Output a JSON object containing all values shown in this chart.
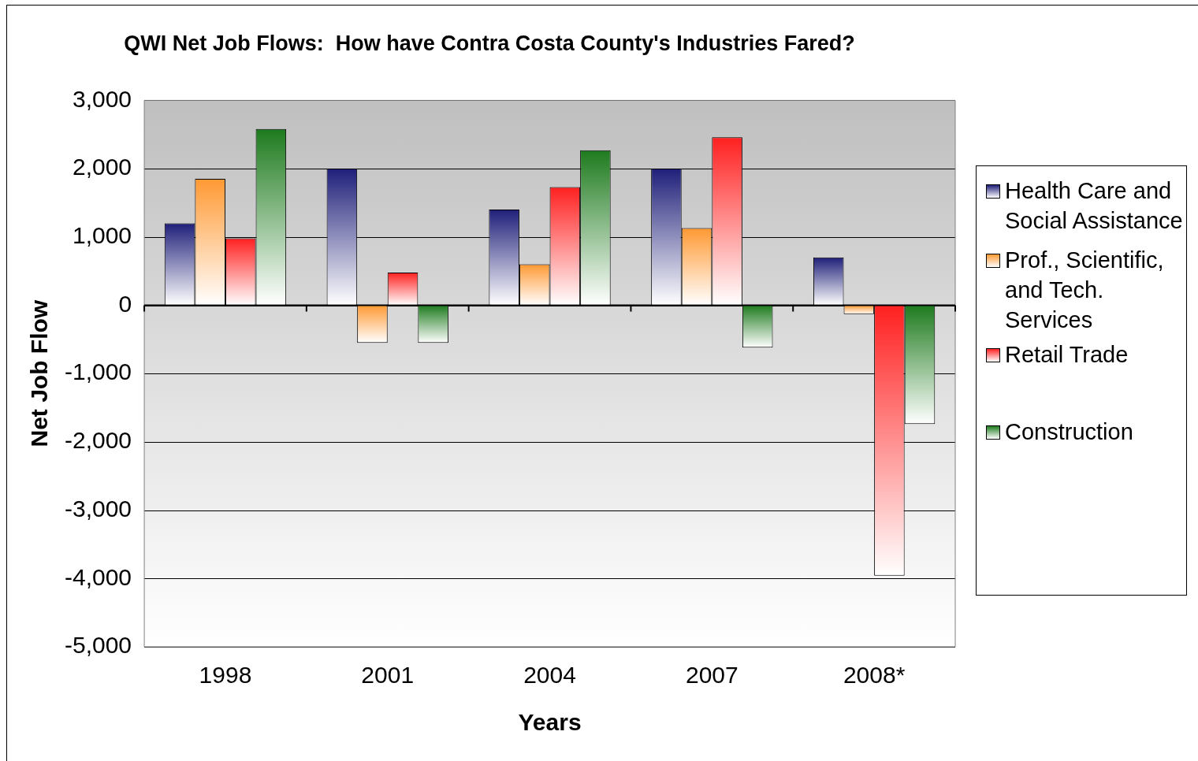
{
  "chart_data": {
    "type": "bar",
    "title": "QWI Net Job Flows:  How have Contra Costa County's Industries Fared?",
    "xlabel": "Years",
    "ylabel": "Net Job Flow",
    "categories": [
      "1998",
      "2001",
      "2004",
      "2007",
      "2008*"
    ],
    "series": [
      {
        "name": "Health Care and Social Assistance",
        "color": "#1f1f7a",
        "values": [
          1200,
          2000,
          1400,
          2000,
          700
        ]
      },
      {
        "name": "Prof., Scientific, and Tech. Services",
        "color": "#ff9933",
        "values": [
          1850,
          -550,
          600,
          1130,
          -130
        ]
      },
      {
        "name": "Retail Trade",
        "color": "#ff2020",
        "values": [
          980,
          480,
          1730,
          2460,
          -3960
        ]
      },
      {
        "name": "Construction",
        "color": "#1e7b1e",
        "values": [
          2580,
          -550,
          2270,
          -620,
          -1740
        ]
      }
    ],
    "ylim": [
      -5000,
      3000
    ],
    "yticks": [
      {
        "value": -5000,
        "label": "-5,000"
      },
      {
        "value": -4000,
        "label": "-4,000"
      },
      {
        "value": -3000,
        "label": "-3,000"
      },
      {
        "value": -2000,
        "label": "-2,000"
      },
      {
        "value": -1000,
        "label": "-1,000"
      },
      0,
      {
        "value": 1000,
        "label": "1,000"
      },
      {
        "value": 2000,
        "label": "2,000"
      },
      {
        "value": 3000,
        "label": "3,000"
      }
    ],
    "grid": "y",
    "legend": "right"
  }
}
